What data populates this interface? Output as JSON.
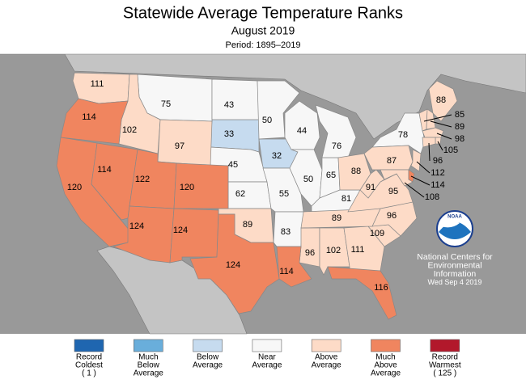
{
  "header": {
    "title": "Statewide Average Temperature Ranks",
    "subtitle": "August 2019",
    "period": "Period: 1895–2019"
  },
  "legend": [
    {
      "label": [
        "Record",
        "Coldest",
        "( 1 )"
      ],
      "color": "#1f66b0",
      "ranks": []
    },
    {
      "label": [
        "Much",
        "Below",
        "Average"
      ],
      "color": "#69aedb",
      "ranks": []
    },
    {
      "label": [
        "Below",
        "Average"
      ],
      "color": "#c6dbef",
      "ranks": [
        33,
        32
      ]
    },
    {
      "label": [
        "Near",
        "Average"
      ],
      "color": "#f7f7f7",
      "ranks": [
        75,
        43,
        50,
        44,
        45,
        62,
        55,
        50,
        65,
        76,
        81,
        83,
        78
      ]
    },
    {
      "label": [
        "Above",
        "Average"
      ],
      "color": "#fddbc7",
      "ranks": [
        111,
        102,
        97,
        89,
        96,
        102,
        111,
        109,
        96,
        89,
        95,
        91,
        88,
        87,
        88,
        85,
        89,
        98,
        105,
        96,
        112,
        108
      ]
    },
    {
      "label": [
        "Much",
        "Above",
        "Average"
      ],
      "color": "#f0855f",
      "ranks": [
        114,
        120,
        114,
        122,
        120,
        124,
        124,
        124,
        114,
        116,
        114
      ]
    },
    {
      "label": [
        "Record",
        "Warmest",
        "( 125 )"
      ],
      "color": "#b2182b",
      "ranks": []
    }
  ],
  "logo": "NOAA",
  "credit": [
    "National Centers for",
    "Environmental",
    "Information",
    "Wed Sep  4 2019"
  ]
}
